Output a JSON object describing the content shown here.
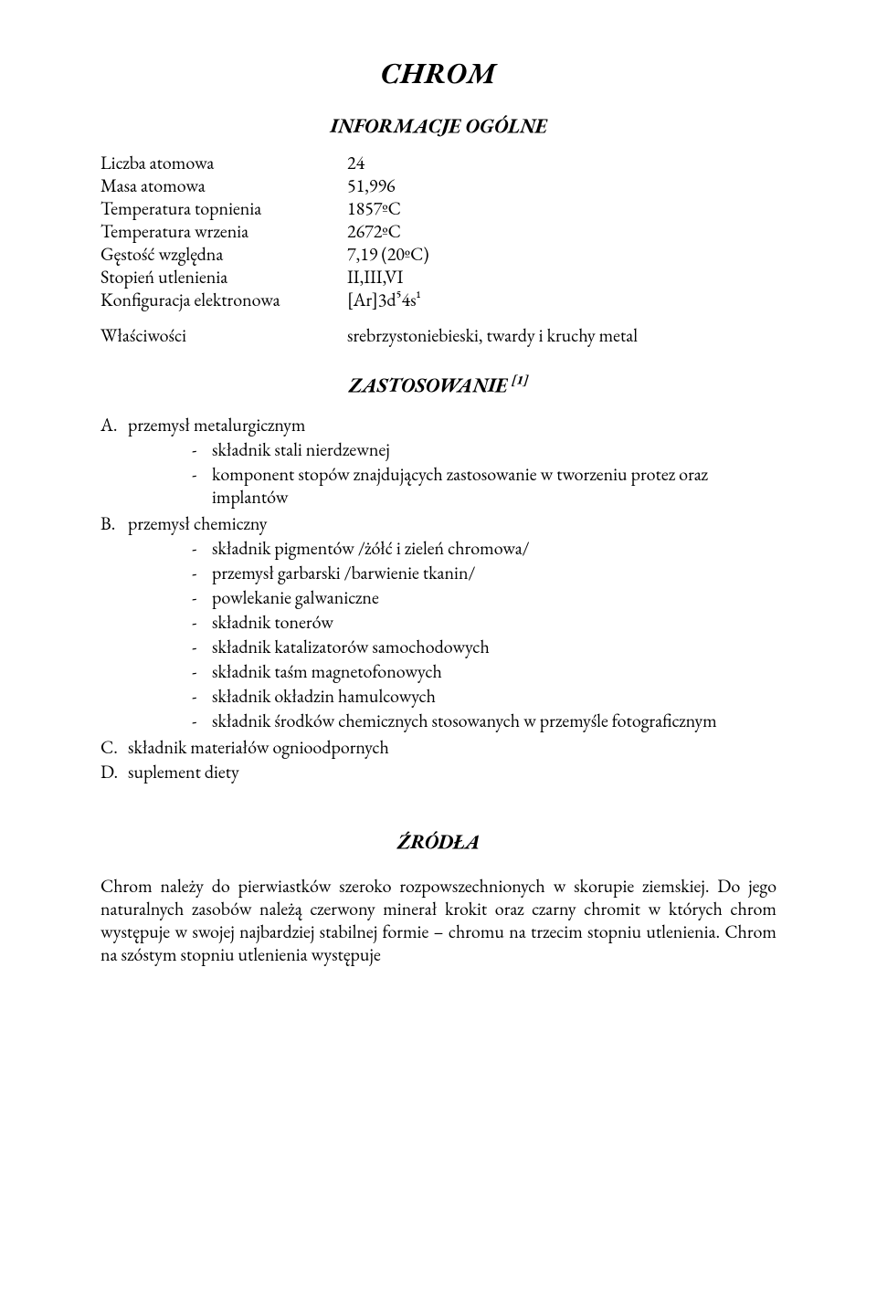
{
  "title": "CHROM",
  "headings": {
    "info": "INFORMACJE OGÓLNE",
    "zast": "ZASTOSOWANIE",
    "zast_ref": "[1]",
    "sources": "ŹRÓDŁA"
  },
  "info_table": [
    {
      "label": "Liczba atomowa",
      "value": "24"
    },
    {
      "label": "Masa atomowa",
      "value": "51,996"
    },
    {
      "label": "Temperatura topnienia",
      "value": "1857ºC"
    },
    {
      "label": "Temperatura wrzenia",
      "value": "2672ºC"
    },
    {
      "label": "Gęstość względna",
      "value": "7,19 (20ºC)"
    },
    {
      "label": "Stopień utlenienia",
      "value": "II,III,VI"
    },
    {
      "label": "Konfiguracja elektronowa",
      "value": "[Ar]3d⁵4s¹"
    }
  ],
  "props": {
    "label": "Właściwości",
    "value": "srebrzystoniebieski, twardy i kruchy metal"
  },
  "zast": {
    "A": {
      "label": "przemysł metalurgicznym",
      "items": [
        "składnik stali nierdzewnej",
        "komponent stopów znajdujących zastosowanie w tworzeniu protez oraz implantów"
      ]
    },
    "B": {
      "label": "przemysł chemiczny",
      "items": [
        "składnik pigmentów /żółć i zieleń chromowa/",
        "przemysł garbarski /barwienie tkanin/",
        "powlekanie galwaniczne",
        "składnik tonerów",
        "składnik katalizatorów samochodowych",
        "składnik taśm magnetofonowych",
        "składnik okładzin hamulcowych",
        "składnik środków chemicznych stosowanych w przemyśle fotograficznym"
      ]
    },
    "C": {
      "label": "składnik materiałów ognioodpornych"
    },
    "D": {
      "label": "suplement diety"
    }
  },
  "sources_para": "Chrom należy do pierwiastków szeroko rozpowszechnionych w skorupie ziemskiej. Do jego naturalnych zasobów należą czerwony minerał krokit oraz czarny chromit w których chrom występuje w swojej najbardziej stabilnej formie – chromu na trzecim stopniu utlenienia. Chrom na szóstym stopniu utlenienia występuje"
}
